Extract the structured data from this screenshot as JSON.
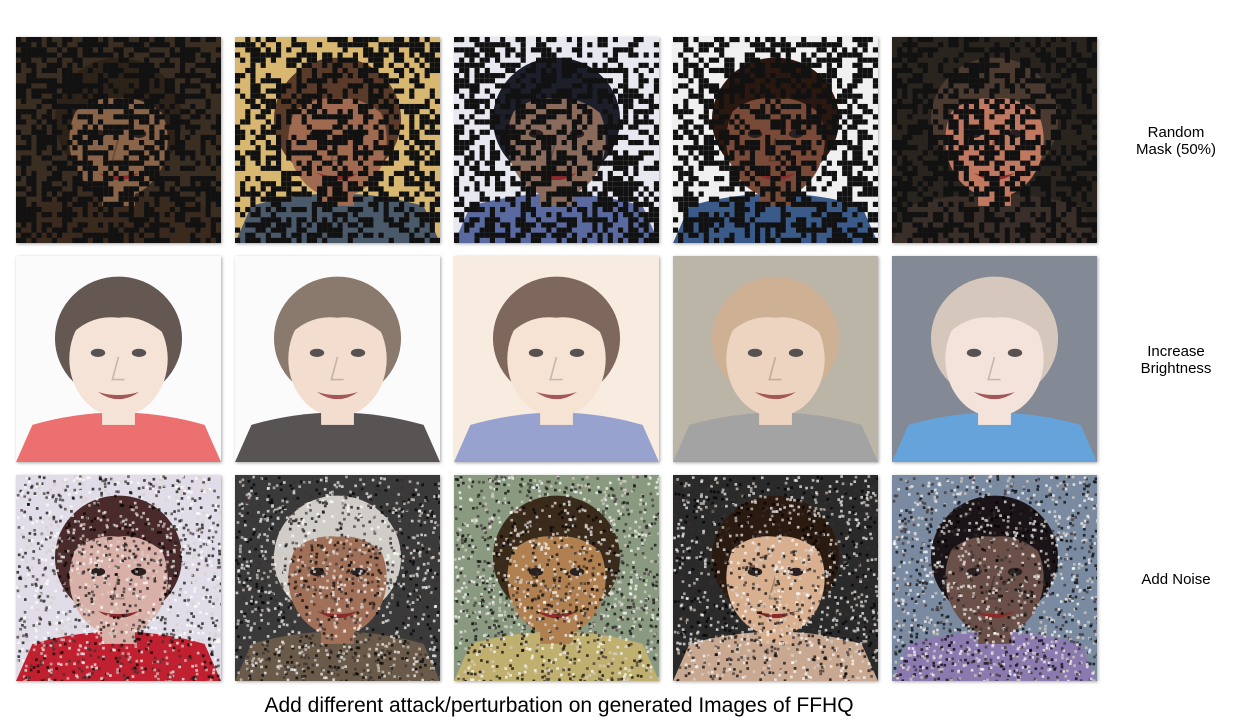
{
  "caption": "Add different attack/perturbation on generated Images of FFHQ",
  "rows": [
    {
      "label": "Random\nMask (50%)",
      "perturbation": "mask",
      "images": [
        {
          "skin": "#8a6448",
          "hair": "#2c2218",
          "bg": "#3a2e22",
          "shirt": "#3a2a1e"
        },
        {
          "skin": "#a06a50",
          "hair": "#5a3a28",
          "bg": "#d8b870",
          "shirt": "#4a5a6a"
        },
        {
          "skin": "#8a6a5a",
          "hair": "#1c1e2a",
          "bg": "#e8e8f0",
          "shirt": "#5a6aa0"
        },
        {
          "skin": "#7a4a38",
          "hair": "#2a1810",
          "bg": "#f0f0f0",
          "shirt": "#3a5a8a"
        },
        {
          "skin": "#c07860",
          "hair": "#4a3a30",
          "bg": "#2a241e",
          "shirt": "#3a2e28"
        }
      ]
    },
    {
      "label": "Increase\nBrightness",
      "perturbation": "bright",
      "images": [
        {
          "skin": "#f4dccc",
          "hair": "#3a2a22",
          "bg": "#fafafa",
          "shirt": "#e84848"
        },
        {
          "skin": "#f0d4c0",
          "hair": "#6a5444",
          "bg": "#fafafa",
          "shirt": "#2a2424"
        },
        {
          "skin": "#f4dcc8",
          "hair": "#5a3e30",
          "bg": "#f6e6d8",
          "shirt": "#7a8ac0"
        },
        {
          "skin": "#e8c8b0",
          "hair": "#c09a78",
          "bg": "#a8a090",
          "shirt": "#8a8a8a"
        },
        {
          "skin": "#f0dcd0",
          "hair": "#cab8a8",
          "bg": "#606a78",
          "shirt": "#3a8ad0"
        }
      ]
    },
    {
      "label": "Add Noise",
      "perturbation": "noise",
      "images": [
        {
          "skin": "#d8b0a8",
          "hair": "#4a2a2a",
          "bg": "#e0dce8",
          "shirt": "#c02030"
        },
        {
          "skin": "#a07058",
          "hair": "#d0ccc8",
          "bg": "#3a3a3a",
          "shirt": "#6a5a4a"
        },
        {
          "skin": "#b08050",
          "hair": "#3a2a1a",
          "bg": "#8a9a80",
          "shirt": "#c0b070"
        },
        {
          "skin": "#d8b090",
          "hair": "#2a1a10",
          "bg": "#2a2a2a",
          "shirt": "#c8a890"
        },
        {
          "skin": "#6a5048",
          "hair": "#1a1418",
          "bg": "#7a8aa0",
          "shirt": "#8a7ab0"
        }
      ]
    }
  ]
}
